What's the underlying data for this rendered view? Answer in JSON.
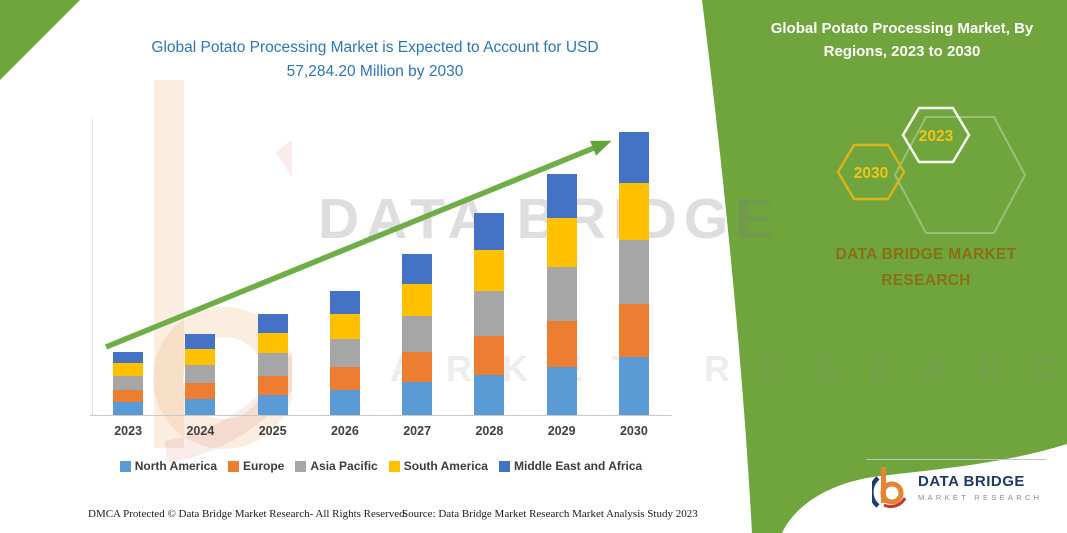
{
  "page": {
    "background": "#ffffff",
    "accent_green": "#6FA53C"
  },
  "title": {
    "lines": [
      "Global Potato Processing Market is Expected to Account for USD",
      "57,284.20 Million by 2030"
    ]
  },
  "side_panel": {
    "heading_lines": [
      "Global Potato Processing Market, By",
      "Regions, 2023 to 2030"
    ],
    "hexagon_years": [
      "2030",
      "2023"
    ],
    "brand_lines": [
      "DATA BRIDGE MARKET",
      "RESEARCH"
    ]
  },
  "watermark": {
    "main": "DATA BRIDGE",
    "sub": "MARKET RESEARCH"
  },
  "chart_data": {
    "type": "bar",
    "stacked": true,
    "title": "Global Potato Processing Market is Expected to Account for USD 57,284.20 Million by 2030",
    "unit": "USD Million",
    "total_2030": 57284.2,
    "categories": [
      "2023",
      "2024",
      "2025",
      "2026",
      "2027",
      "2028",
      "2029",
      "2030"
    ],
    "series": [
      {
        "name": "North America",
        "color": "#5B9BD5",
        "values": [
          2600,
          3300,
          4100,
          5000,
          6600,
          8200,
          9800,
          11700
        ]
      },
      {
        "name": "Europe",
        "color": "#ED7D31",
        "values": [
          2500,
          3100,
          3900,
          4800,
          6200,
          7800,
          9300,
          10800
        ]
      },
      {
        "name": "Asia Pacific",
        "color": "#A6A6A6",
        "values": [
          2900,
          3700,
          4600,
          5700,
          7300,
          9200,
          11000,
          12900
        ]
      },
      {
        "name": "South America",
        "color": "#FFC000",
        "values": [
          2600,
          3300,
          4100,
          5000,
          6500,
          8200,
          9800,
          11650
        ]
      },
      {
        "name": "Middle East and Africa",
        "color": "#4472C4",
        "values": [
          2300,
          3000,
          3700,
          4600,
          6000,
          7500,
          9000,
          10234
        ]
      }
    ],
    "ylim": [
      0,
      60000
    ],
    "grid": false,
    "legend_position": "bottom",
    "trend_arrow": true
  },
  "logo": {
    "title": "DATA BRIDGE",
    "subtitle": "MARKET RESEARCH"
  },
  "footer": {
    "left": "DMCA Protected © Data Bridge Market Research-  All Rights Reserved.",
    "source": "Source: Data Bridge Market Research  Market Analysis Study 2023"
  }
}
